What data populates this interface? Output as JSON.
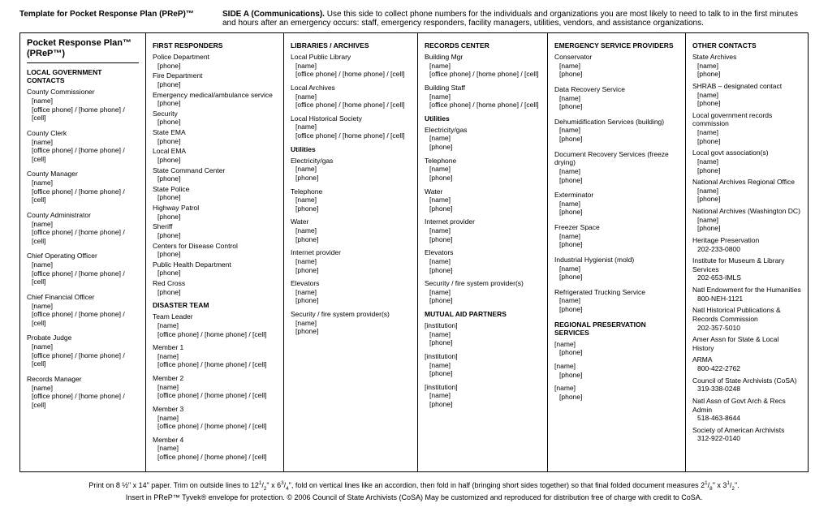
{
  "header": {
    "template_title": "Template for Pocket Response Plan (PReP)™",
    "side_label": "SIDE A (Communications).",
    "side_text": "Use this side to collect phone numbers for the individuals and organizations you are most likely to need to talk to in the first minutes and hours after an emergency occurs: staff, emergency responders, facility managers, utilities, vendors, and assistance organizations."
  },
  "plan_title_line1": "Pocket Response Plan™",
  "plan_title_line2": "(PReP™)",
  "col0": {
    "section": "LOCAL GOVERNMENT CONTACTS",
    "items": [
      {
        "t": "County Commissioner",
        "l": [
          "[name]",
          "[office phone] / [home phone] / [cell]"
        ]
      },
      {
        "t": "County Clerk",
        "l": [
          "[name]",
          "[office phone] / [home phone] / [cell]"
        ]
      },
      {
        "t": "County Manager",
        "l": [
          "[name]",
          "[office phone] / [home phone] / [cell]"
        ]
      },
      {
        "t": "County Administrator",
        "l": [
          "[name]",
          "[office phone] / [home phone] / [cell]"
        ]
      },
      {
        "t": "Chief Operating Officer",
        "l": [
          "[name]",
          "[office phone] / [home phone] / [cell]"
        ]
      },
      {
        "t": "Chief Financial Officer",
        "l": [
          "[name]",
          "[office phone] / [home phone] / [cell]"
        ]
      },
      {
        "t": "Probate Judge",
        "l": [
          "[name]",
          "[office phone] / [home phone] / [cell]"
        ]
      },
      {
        "t": "Records Manager",
        "l": [
          "[name]",
          "[office phone] / [home phone] / [cell]"
        ]
      }
    ]
  },
  "col1": {
    "section1": "FIRST RESPONDERS",
    "items1": [
      {
        "t": "Police Department",
        "l": [
          "[phone]"
        ]
      },
      {
        "t": "Fire Department",
        "l": [
          "[phone]"
        ]
      },
      {
        "t": "Emergency medical/ambulance service",
        "l": [
          "[phone]"
        ]
      },
      {
        "t": "Security",
        "l": [
          "[phone]"
        ]
      },
      {
        "t": "State EMA",
        "l": [
          "[phone]"
        ]
      },
      {
        "t": "Local EMA",
        "l": [
          "[phone]"
        ]
      },
      {
        "t": "State Command Center",
        "l": [
          "[phone]"
        ]
      },
      {
        "t": "State Police",
        "l": [
          "[phone]"
        ]
      },
      {
        "t": "Highway Patrol",
        "l": [
          "[phone]"
        ]
      },
      {
        "t": "Sheriff",
        "l": [
          "[phone]"
        ]
      },
      {
        "t": "Centers for Disease Control",
        "l": [
          "[phone]"
        ]
      },
      {
        "t": "Public Health Department",
        "l": [
          "[phone]"
        ]
      },
      {
        "t": "Red Cross",
        "l": [
          "[phone]"
        ]
      }
    ],
    "section2": "DISASTER TEAM",
    "items2": [
      {
        "t": "Team Leader",
        "l": [
          "[name]",
          "[office phone] / [home phone] / [cell]"
        ]
      },
      {
        "t": "Member 1",
        "l": [
          "[name]",
          "[office phone] / [home phone] / [cell]"
        ]
      },
      {
        "t": "Member 2",
        "l": [
          "[name]",
          "[office phone] / [home phone] / [cell]"
        ]
      },
      {
        "t": "Member 3",
        "l": [
          "[name]",
          "[office phone] / [home phone] / [cell]"
        ]
      },
      {
        "t": "Member 4",
        "l": [
          "[name]",
          "[office phone] / [home phone] / [cell]"
        ]
      }
    ]
  },
  "col2": {
    "section1": "LIBRARIES / ARCHIVES",
    "items1": [
      {
        "t": "Local Public Library",
        "l": [
          "[name]",
          "[office phone] / [home phone] / [cell]"
        ]
      },
      {
        "t": "Local Archives",
        "l": [
          "[name]",
          "[office phone] / [home phone] / [cell]"
        ]
      },
      {
        "t": "Local Historical Society",
        "l": [
          "[name]",
          "[office phone] / [home phone] / [cell]"
        ]
      }
    ],
    "section2": "Utilities",
    "items2": [
      {
        "t": "Electricity/gas",
        "l": [
          "[name]",
          "[phone]"
        ]
      },
      {
        "t": "Telephone",
        "l": [
          "[name]",
          "[phone]"
        ]
      },
      {
        "t": "Water",
        "l": [
          "[name]",
          "[phone]"
        ]
      },
      {
        "t": "Internet provider",
        "l": [
          "[name]",
          "[phone]"
        ]
      },
      {
        "t": "Elevators",
        "l": [
          "[name]",
          "[phone]"
        ]
      },
      {
        "t": "Security / fire system provider(s)",
        "l": [
          "[name]",
          "[phone]"
        ]
      }
    ]
  },
  "col3": {
    "section1": "RECORDS CENTER",
    "items1": [
      {
        "t": "Building Mgr",
        "l": [
          "[name]",
          "[office phone] / [home phone] / [cell]"
        ]
      },
      {
        "t": "Building Staff",
        "l": [
          "[name]",
          "[office phone] / [home phone] / [cell]"
        ]
      }
    ],
    "section2": "Utilities",
    "items2": [
      {
        "t": "Electricity/gas",
        "l": [
          "[name]",
          "[phone]"
        ]
      },
      {
        "t": "Telephone",
        "l": [
          "[name]",
          "[phone]"
        ]
      },
      {
        "t": "Water",
        "l": [
          "[name]",
          "[phone]"
        ]
      },
      {
        "t": "Internet provider",
        "l": [
          "[name]",
          "[phone]"
        ]
      },
      {
        "t": "Elevators",
        "l": [
          "[name]",
          "[phone]"
        ]
      },
      {
        "t": "Security / fire system provider(s)",
        "l": [
          "[name]",
          "[phone]"
        ]
      }
    ],
    "section3": "MUTUAL AID PARTNERS",
    "items3": [
      {
        "t": "[institution]",
        "l": [
          "[name]",
          "[phone]"
        ]
      },
      {
        "t": "[institution]",
        "l": [
          "[name]",
          "[phone]"
        ]
      },
      {
        "t": "[institution]",
        "l": [
          "[name]",
          "[phone]"
        ]
      }
    ]
  },
  "col4": {
    "section1": "EMERGENCY SERVICE PROVIDERS",
    "items1": [
      {
        "t": "Conservator",
        "l": [
          "[name]",
          "[phone]"
        ]
      },
      {
        "t": "Data Recovery Service",
        "l": [
          "[name]",
          "[phone]"
        ]
      },
      {
        "t": "Dehumidification Services (building)",
        "l": [
          "[name]",
          "[phone]"
        ]
      },
      {
        "t": "Document Recovery Services (freeze drying)",
        "l": [
          "[name]",
          "[phone]"
        ]
      },
      {
        "t": "Exterminator",
        "l": [
          "[name]",
          "[phone]"
        ]
      },
      {
        "t": "Freezer Space",
        "l": [
          "[name]",
          "[phone]"
        ]
      },
      {
        "t": "Industrial Hygienist (mold)",
        "l": [
          "[name]",
          "[phone]"
        ]
      },
      {
        "t": "Refrigerated Trucking Service",
        "l": [
          "[name]",
          "[phone]"
        ]
      }
    ],
    "section2": "REGIONAL PRESERVATION SERVICES",
    "items2": [
      {
        "t": "[name]",
        "l": [
          "[phone]"
        ]
      },
      {
        "t": "[name]",
        "l": [
          "[phone]"
        ]
      },
      {
        "t": "[name]",
        "l": [
          "[phone]"
        ]
      }
    ]
  },
  "col5": {
    "section": "OTHER CONTACTS",
    "items": [
      {
        "t": "State Archives",
        "l": [
          "[name]",
          "[phone]"
        ]
      },
      {
        "t": "SHRAB – designated contact",
        "l": [
          "[name]",
          "[phone]"
        ]
      },
      {
        "t": "Local government records commission",
        "l": [
          "[name]",
          "[phone]"
        ]
      },
      {
        "t": "Local govt association(s)",
        "l": [
          "[name]",
          "[phone]"
        ]
      },
      {
        "t": "National Archives Regional Office",
        "l": [
          "[name]",
          "[phone]"
        ]
      },
      {
        "t": "National Archives (Washington DC)",
        "l": [
          "[name]",
          "[phone]"
        ]
      },
      {
        "t": "Heritage Preservation",
        "l": [
          "202-233-0800"
        ]
      },
      {
        "t": "Institute for Museum & Library Services",
        "l": [
          "202-653-IMLS"
        ]
      },
      {
        "t": "Natl Endowment for the Humanities",
        "l": [
          "800-NEH-1121"
        ]
      },
      {
        "t": "Natl Historical Publications & Records Commission",
        "l": [
          "202-357-5010"
        ]
      },
      {
        "t": "Amer Assn for State & Local History",
        "l": []
      },
      {
        "t": "ARMA",
        "l": [
          "800-422-2762"
        ]
      },
      {
        "t": "Council of State Archivists (CoSA)",
        "l": [
          "319-338-0248"
        ]
      },
      {
        "t": "Natl Assn of Govt Arch & Recs Admin",
        "l": [
          "518-463-8644"
        ]
      },
      {
        "t": "Society of American Archivists",
        "l": [
          "312-922-0140"
        ]
      }
    ]
  },
  "footer": {
    "line1a": "Print on 8 ½\" x 14\" paper. Trim on outside lines to 12",
    "line1b": "\" x 6",
    "line1c": "\", fold on vertical lines like an accordion, then fold in half (bringing short sides together) so that final folded document measures 2",
    "line1d": "\" x 3",
    "line1e": "\".",
    "line2": "Insert in PReP™ Tyvek® envelope for protection.  © 2006 Council of State Archivists (CoSA)      May be customized and reproduced for distribution free of charge with credit to CoSA."
  }
}
